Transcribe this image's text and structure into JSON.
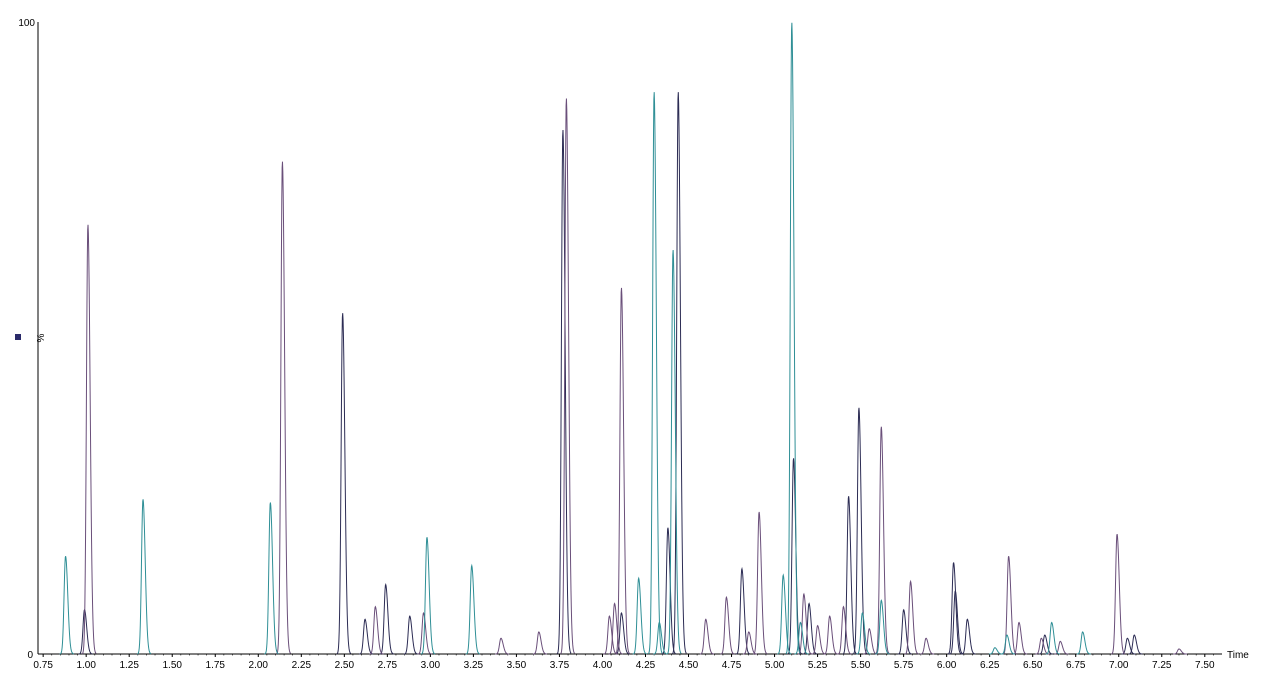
{
  "chart_data": {
    "type": "line",
    "xlabel": "Time",
    "ylabel": "%",
    "y_tick_labels": [
      "100",
      "%",
      "0"
    ],
    "xlim": [
      0.72,
      7.6
    ],
    "ylim": [
      0,
      100
    ],
    "x_ticks": [
      "0.75",
      "1.00",
      "1.25",
      "1.50",
      "1.75",
      "2.00",
      "2.25",
      "2.50",
      "2.75",
      "3.00",
      "3.25",
      "3.50",
      "3.75",
      "4.00",
      "4.25",
      "4.50",
      "4.75",
      "5.00",
      "5.25",
      "5.50",
      "5.75",
      "6.00",
      "6.25",
      "6.50",
      "6.75",
      "7.00",
      "7.25",
      "7.50"
    ],
    "grid": false,
    "legend": "none",
    "series": [
      {
        "color": "#2c2c54",
        "peaks": [
          {
            "x": 0.99,
            "y": 7
          },
          {
            "x": 2.49,
            "y": 54
          },
          {
            "x": 2.62,
            "y": 5.5
          },
          {
            "x": 2.74,
            "y": 11
          },
          {
            "x": 2.88,
            "y": 6
          },
          {
            "x": 3.77,
            "y": 83
          },
          {
            "x": 4.11,
            "y": 6.5
          },
          {
            "x": 4.38,
            "y": 20
          },
          {
            "x": 4.44,
            "y": 89
          },
          {
            "x": 4.81,
            "y": 13.5
          },
          {
            "x": 5.11,
            "y": 31
          },
          {
            "x": 5.2,
            "y": 8
          },
          {
            "x": 5.43,
            "y": 25
          },
          {
            "x": 5.49,
            "y": 39
          },
          {
            "x": 5.75,
            "y": 7
          },
          {
            "x": 6.04,
            "y": 14.5
          },
          {
            "x": 6.05,
            "y": 10
          },
          {
            "x": 6.12,
            "y": 5.5
          },
          {
            "x": 6.57,
            "y": 3
          },
          {
            "x": 7.05,
            "y": 2.5
          },
          {
            "x": 7.09,
            "y": 3
          }
        ]
      },
      {
        "color": "#6a4f7a",
        "peaks": [
          {
            "x": 1.01,
            "y": 68
          },
          {
            "x": 2.14,
            "y": 78
          },
          {
            "x": 2.68,
            "y": 7.5
          },
          {
            "x": 2.96,
            "y": 6.5
          },
          {
            "x": 3.41,
            "y": 2.5
          },
          {
            "x": 3.63,
            "y": 3.5
          },
          {
            "x": 3.79,
            "y": 88
          },
          {
            "x": 4.04,
            "y": 6
          },
          {
            "x": 4.07,
            "y": 8
          },
          {
            "x": 4.11,
            "y": 58
          },
          {
            "x": 4.6,
            "y": 5.5
          },
          {
            "x": 4.72,
            "y": 9
          },
          {
            "x": 4.85,
            "y": 3.5
          },
          {
            "x": 4.91,
            "y": 22.5
          },
          {
            "x": 5.17,
            "y": 9.5
          },
          {
            "x": 5.25,
            "y": 4.5
          },
          {
            "x": 5.32,
            "y": 6
          },
          {
            "x": 5.4,
            "y": 7.5
          },
          {
            "x": 5.55,
            "y": 4
          },
          {
            "x": 5.62,
            "y": 36
          },
          {
            "x": 5.79,
            "y": 11.5
          },
          {
            "x": 5.88,
            "y": 2.5
          },
          {
            "x": 6.36,
            "y": 15.5
          },
          {
            "x": 6.42,
            "y": 5
          },
          {
            "x": 6.55,
            "y": 2.5
          },
          {
            "x": 6.66,
            "y": 2
          },
          {
            "x": 6.99,
            "y": 19
          },
          {
            "x": 7.35,
            "y": 0.8
          }
        ]
      },
      {
        "color": "#2f8f96",
        "peaks": [
          {
            "x": 0.88,
            "y": 15.5
          },
          {
            "x": 1.33,
            "y": 24.5
          },
          {
            "x": 2.07,
            "y": 24
          },
          {
            "x": 2.98,
            "y": 18.5
          },
          {
            "x": 3.24,
            "y": 14
          },
          {
            "x": 4.21,
            "y": 12
          },
          {
            "x": 4.3,
            "y": 89
          },
          {
            "x": 4.33,
            "y": 5
          },
          {
            "x": 4.41,
            "y": 64
          },
          {
            "x": 5.05,
            "y": 12.5
          },
          {
            "x": 5.1,
            "y": 100
          },
          {
            "x": 5.15,
            "y": 5
          },
          {
            "x": 5.51,
            "y": 6.5
          },
          {
            "x": 5.62,
            "y": 8.5
          },
          {
            "x": 6.28,
            "y": 1
          },
          {
            "x": 6.35,
            "y": 3
          },
          {
            "x": 6.61,
            "y": 5
          },
          {
            "x": 6.79,
            "y": 3.5
          }
        ]
      }
    ]
  }
}
